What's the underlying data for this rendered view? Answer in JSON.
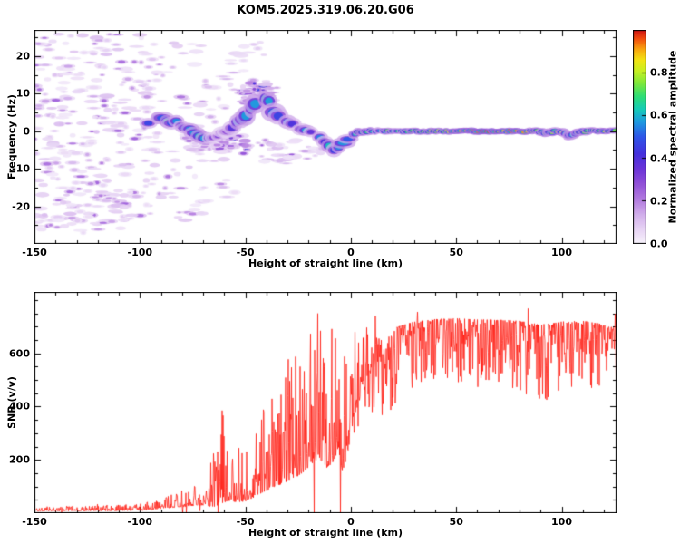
{
  "title": "KOM5.2025.319.06.20.G06",
  "colors": {
    "background": "#ffffff",
    "axis": "#000000",
    "snr_line": "#ff2015"
  },
  "colormap_stops": [
    [
      0.0,
      "#f7f2fb"
    ],
    [
      0.06,
      "#e9d7f5"
    ],
    [
      0.13,
      "#d4b2ec"
    ],
    [
      0.2,
      "#b57fe0"
    ],
    [
      0.28,
      "#9250d8"
    ],
    [
      0.35,
      "#6b34d8"
    ],
    [
      0.42,
      "#4530dd"
    ],
    [
      0.5,
      "#2f55e8"
    ],
    [
      0.57,
      "#1e9ae0"
    ],
    [
      0.63,
      "#16ccb8"
    ],
    [
      0.69,
      "#2ede74"
    ],
    [
      0.75,
      "#7ce83c"
    ],
    [
      0.81,
      "#c8f021"
    ],
    [
      0.86,
      "#f2e413"
    ],
    [
      0.91,
      "#f9a70e"
    ],
    [
      0.96,
      "#f24e0d"
    ],
    [
      1.0,
      "#cf1313"
    ]
  ],
  "chart_data": [
    {
      "type": "heatmap",
      "title": "KOM5.2025.319.06.20.G06",
      "xlabel": "Height of straight line (km)",
      "ylabel": "Frequency (Hz)",
      "xlim": [
        -150,
        126
      ],
      "ylim": [
        -30,
        27
      ],
      "xticks": [
        -150,
        -100,
        -50,
        0,
        50,
        100
      ],
      "yticks": [
        -20,
        -10,
        0,
        10,
        20
      ],
      "colorbar": {
        "label": "Normalized spectral amplitude",
        "ticks": [
          0.0,
          0.2,
          0.4,
          0.6,
          0.8
        ],
        "range": [
          0,
          1
        ]
      },
      "description": "Doppler spectrogram: diffuse low-amplitude purple noise speckles for heights below -60 km, a meandering spectral trace near 0 Hz that rises to ~8.5 Hz around -40 km, dips to -5 Hz near -7 km, then becomes a thin continuous high-amplitude (green/yellow/red) line at 0 Hz for heights above 0 km.",
      "trace": [
        [
          -96,
          2.5,
          0.45,
          1.6
        ],
        [
          -92,
          3.0,
          0.52,
          1.8
        ],
        [
          -88,
          3.0,
          0.58,
          2.0
        ],
        [
          -84,
          2.5,
          0.5,
          1.9
        ],
        [
          -80,
          1.5,
          0.4,
          1.6
        ],
        [
          -76,
          0.0,
          0.48,
          1.8
        ],
        [
          -72,
          -1.5,
          0.55,
          2.0
        ],
        [
          -69,
          -2.0,
          0.5,
          1.9
        ],
        [
          -66,
          -2.0,
          0.38,
          1.6
        ],
        [
          -62,
          -1.0,
          0.32,
          1.6
        ],
        [
          -58,
          0.5,
          0.36,
          1.9
        ],
        [
          -55,
          2.0,
          0.42,
          2.2
        ],
        [
          -52,
          3.5,
          0.5,
          2.6
        ],
        [
          -49,
          5.0,
          0.56,
          3.0
        ],
        [
          -46,
          6.5,
          0.52,
          3.0
        ],
        [
          -43,
          8.0,
          0.48,
          2.8
        ],
        [
          -41,
          8.5,
          0.52,
          2.6
        ],
        [
          -39,
          7.5,
          0.57,
          2.6
        ],
        [
          -37,
          6.0,
          0.62,
          2.9
        ],
        [
          -35,
          5.0,
          0.52,
          2.6
        ],
        [
          -32,
          3.5,
          0.46,
          2.3
        ],
        [
          -29,
          2.5,
          0.42,
          2.0
        ],
        [
          -26,
          1.5,
          0.46,
          1.9
        ],
        [
          -23,
          0.5,
          0.5,
          1.8
        ],
        [
          -20,
          0.0,
          0.46,
          1.6
        ],
        [
          -17,
          -0.5,
          0.42,
          1.6
        ],
        [
          -14,
          -1.5,
          0.46,
          1.8
        ],
        [
          -11,
          -3.0,
          0.52,
          2.0
        ],
        [
          -9,
          -4.5,
          0.56,
          2.2
        ],
        [
          -7,
          -5.0,
          0.52,
          2.0
        ],
        [
          -5,
          -4.0,
          0.47,
          1.8
        ],
        [
          -3,
          -2.5,
          0.52,
          1.6
        ],
        [
          -1,
          -1.5,
          0.56,
          1.4
        ],
        [
          2,
          -0.5,
          0.6,
          1.2
        ],
        [
          5,
          0.0,
          0.66,
          1.1
        ],
        [
          9,
          0.0,
          0.62,
          1.0
        ],
        [
          14,
          0.0,
          0.66,
          0.9
        ],
        [
          20,
          0.0,
          0.62,
          0.85
        ],
        [
          26,
          0.0,
          0.66,
          0.85
        ],
        [
          33,
          0.0,
          0.7,
          0.85
        ],
        [
          40,
          0.0,
          0.76,
          0.85
        ],
        [
          48,
          0.0,
          0.82,
          0.85
        ],
        [
          56,
          0.0,
          0.86,
          0.85
        ],
        [
          64,
          0.0,
          0.92,
          0.85
        ],
        [
          72,
          0.0,
          0.9,
          0.85
        ],
        [
          80,
          0.0,
          0.86,
          0.85
        ],
        [
          88,
          0.0,
          0.72,
          0.9
        ],
        [
          93,
          -0.3,
          0.66,
          1.2
        ],
        [
          98,
          0.0,
          0.78,
          0.9
        ],
        [
          103,
          -0.8,
          0.62,
          1.5
        ],
        [
          108,
          -0.3,
          0.68,
          1.1
        ],
        [
          113,
          0.0,
          0.72,
          0.9
        ],
        [
          119,
          0.0,
          0.78,
          0.9
        ],
        [
          126,
          0.0,
          0.72,
          0.9
        ]
      ],
      "noise_clusters": [
        [
          -150,
          -120,
          -27,
          26,
          150,
          0.03,
          0.16
        ],
        [
          -122,
          -95,
          -27,
          26,
          130,
          0.03,
          0.16
        ],
        [
          -97,
          -70,
          -24,
          24,
          70,
          0.03,
          0.14
        ],
        [
          -72,
          -55,
          -20,
          20,
          30,
          0.03,
          0.12
        ],
        [
          -58,
          -38,
          6,
          24,
          26,
          0.03,
          0.12
        ],
        [
          -52,
          -35,
          7,
          13,
          55,
          0.06,
          0.3
        ],
        [
          -63,
          -48,
          -6,
          -1,
          40,
          0.06,
          0.28
        ],
        [
          -80,
          -62,
          -5,
          -1,
          30,
          0.05,
          0.2
        ],
        [
          -45,
          -25,
          -9,
          -2,
          26,
          0.04,
          0.18
        ],
        [
          -30,
          -12,
          -8,
          -3,
          12,
          0.04,
          0.12
        ],
        [
          -140,
          -100,
          -27,
          -15,
          40,
          0.03,
          0.14
        ]
      ]
    },
    {
      "type": "line",
      "xlabel": "Height of straight line (km)",
      "ylabel": "SNR (v/v)",
      "xlim": [
        -150,
        126
      ],
      "ylim": [
        0,
        830
      ],
      "xticks": [
        -150,
        -100,
        -50,
        0,
        50,
        100
      ],
      "yticks": [
        200,
        400,
        600
      ],
      "description": "Noisy SNR profile: near zero below -100 km, intermittent spikes between -65 and 0 km (peaks ~700), rising to a dense plateau of ~600-730 v/v above +20 km with occasional dips to ~400.",
      "series": [
        {
          "name": "SNR",
          "color": "#ff2015",
          "envelope": [
            [
              -150,
              12,
              8
            ],
            [
              -130,
              13,
              9
            ],
            [
              -115,
              14,
              10
            ],
            [
              -100,
              17,
              12
            ],
            [
              -92,
              22,
              16
            ],
            [
              -86,
              32,
              22
            ],
            [
              -80,
              40,
              28
            ],
            [
              -74,
              46,
              34
            ],
            [
              -69,
              55,
              45
            ],
            [
              -64,
              90,
              130
            ],
            [
              -61,
              130,
              170
            ],
            [
              -58,
              85,
              70
            ],
            [
              -54,
              90,
              90
            ],
            [
              -50,
              110,
              120
            ],
            [
              -46,
              130,
              130
            ],
            [
              -42,
              160,
              150
            ],
            [
              -38,
              185,
              170
            ],
            [
              -34,
              215,
              200
            ],
            [
              -30,
              235,
              210
            ],
            [
              -26,
              260,
              230
            ],
            [
              -22,
              300,
              260
            ],
            [
              -18,
              360,
              310
            ],
            [
              -15,
              390,
              330
            ],
            [
              -12,
              310,
              260
            ],
            [
              -9,
              350,
              300
            ],
            [
              -6,
              410,
              330
            ],
            [
              -4,
              300,
              270
            ],
            [
              -2,
              360,
              280
            ],
            [
              0,
              420,
              260
            ],
            [
              4,
              470,
              230
            ],
            [
              8,
              510,
              210
            ],
            [
              12,
              545,
              195
            ],
            [
              16,
              575,
              180
            ],
            [
              20,
              605,
              160
            ],
            [
              25,
              630,
              140
            ],
            [
              30,
              650,
              125
            ],
            [
              40,
              665,
              115
            ],
            [
              50,
              665,
              120
            ],
            [
              60,
              655,
              130
            ],
            [
              70,
              660,
              120
            ],
            [
              80,
              650,
              130
            ],
            [
              90,
              625,
              150
            ],
            [
              100,
              650,
              125
            ],
            [
              110,
              650,
              130
            ],
            [
              118,
              645,
              120
            ],
            [
              126,
              635,
              105
            ]
          ]
        }
      ]
    }
  ]
}
